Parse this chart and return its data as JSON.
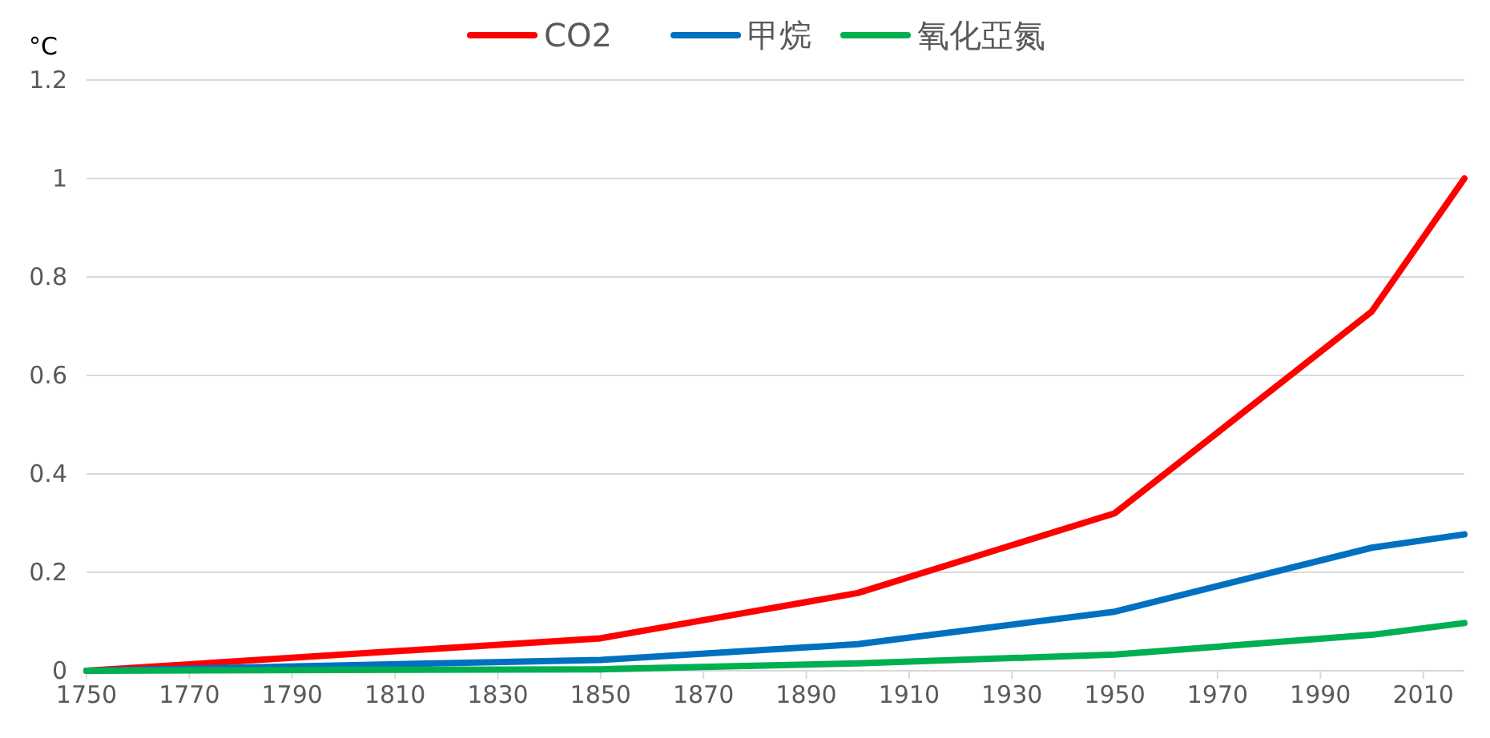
{
  "chart_data": {
    "type": "line",
    "ylabel": "°C",
    "x": [
      1750,
      1850,
      1900,
      1950,
      2000,
      2018
    ],
    "series": [
      {
        "name": "CO2",
        "color": "#ff0000",
        "values": [
          0,
          0.066,
          0.158,
          0.32,
          0.73,
          1.0
        ]
      },
      {
        "name": "甲烷",
        "color": "#0070c0",
        "values": [
          0,
          0.022,
          0.054,
          0.12,
          0.25,
          0.277
        ]
      },
      {
        "name": "氧化亞氮",
        "color": "#00b050",
        "values": [
          0,
          0.003,
          0.015,
          0.033,
          0.073,
          0.097
        ]
      }
    ],
    "xlim": [
      1750,
      2018
    ],
    "xticks": [
      1750,
      1770,
      1790,
      1810,
      1830,
      1850,
      1870,
      1890,
      1910,
      1930,
      1950,
      1970,
      1990,
      2010
    ],
    "ylim": [
      0,
      1.2
    ],
    "yticks": [
      0,
      0.2,
      0.4,
      0.6,
      0.8,
      1,
      1.2
    ],
    "grid": "y",
    "legend": "top",
    "marker": "none",
    "line_style": "solid"
  }
}
